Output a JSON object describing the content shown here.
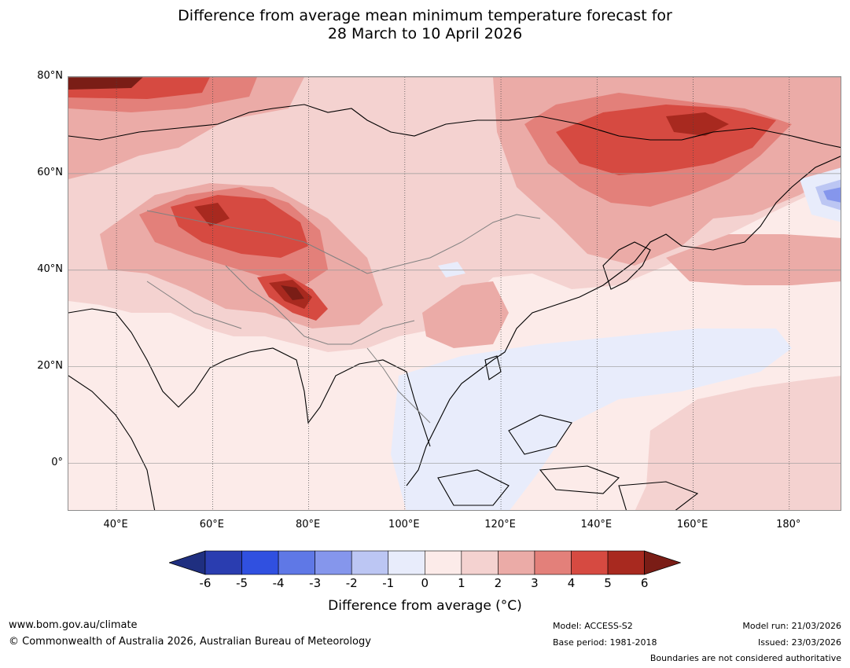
{
  "title": {
    "line1": "Difference from average mean minimum temperature forecast for",
    "line2": "28 March to 10 April 2026"
  },
  "map": {
    "lat_ticks": [
      "80°N",
      "60°N",
      "40°N",
      "20°N",
      "0°"
    ],
    "lat_values": [
      80,
      60,
      40,
      20,
      0
    ],
    "lon_ticks": [
      "40°E",
      "60°E",
      "80°E",
      "100°E",
      "120°E",
      "140°E",
      "160°E",
      "180°"
    ],
    "lon_values": [
      40,
      60,
      80,
      100,
      120,
      140,
      160,
      180
    ],
    "lon_range": [
      30,
      191
    ],
    "lat_range": [
      -10,
      80
    ]
  },
  "colorbar": {
    "ticks": [
      "-6",
      "-5",
      "-4",
      "-3",
      "-2",
      "-1",
      "0",
      "1",
      "2",
      "3",
      "4",
      "5",
      "6"
    ],
    "colors": [
      "#1f2f80",
      "#2a3db0",
      "#3050e0",
      "#5f78e6",
      "#8596ec",
      "#bcc6f3",
      "#e8ecfb",
      "#fcebe9",
      "#f4d2d0",
      "#ebaba7",
      "#e3807a",
      "#d64a41",
      "#a8291f",
      "#7a1d16"
    ],
    "label": "Difference from average (°C)"
  },
  "footer": {
    "url": "www.bom.gov.au/climate",
    "copyright": "© Commonwealth of Australia 2026, Australian Bureau of Meteorology",
    "model": "Model: ACCESS-S2",
    "base_period": "Base period: 1981-2018",
    "model_run": "Model run: 21/03/2026",
    "issued": "Issued: 23/03/2026",
    "disclaimer": "Boundaries are not considered authoritative"
  }
}
